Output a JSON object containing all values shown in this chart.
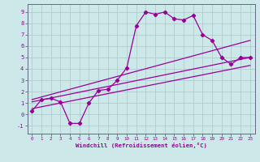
{
  "xlabel": "Windchill (Refroidissement éolien,°C)",
  "background_color": "#cce8e8",
  "grid_color": "#b0cccc",
  "line_color": "#990099",
  "spine_color": "#666688",
  "xlim": [
    -0.5,
    23.5
  ],
  "ylim": [
    -1.7,
    9.7
  ],
  "xticks": [
    0,
    1,
    2,
    3,
    4,
    5,
    6,
    7,
    8,
    9,
    10,
    11,
    12,
    13,
    14,
    15,
    16,
    17,
    18,
    19,
    20,
    21,
    22,
    23
  ],
  "yticks": [
    -1,
    0,
    1,
    2,
    3,
    4,
    5,
    6,
    7,
    8,
    9
  ],
  "series": [
    {
      "x": [
        0,
        1,
        2,
        3,
        4,
        5,
        6,
        7,
        8,
        9,
        10,
        11,
        12,
        13,
        14,
        15,
        16,
        17,
        18,
        19,
        20,
        21,
        22,
        23
      ],
      "y": [
        0.3,
        1.3,
        1.4,
        1.1,
        -0.8,
        -0.8,
        1.0,
        2.1,
        2.2,
        3.0,
        4.1,
        7.8,
        9.0,
        8.8,
        9.0,
        8.4,
        8.3,
        8.7,
        7.0,
        6.5,
        5.0,
        4.4,
        5.0,
        5.0
      ],
      "marker": true
    },
    {
      "x": [
        0,
        23
      ],
      "y": [
        1.1,
        5.0
      ],
      "marker": false
    },
    {
      "x": [
        0,
        23
      ],
      "y": [
        0.5,
        4.3
      ],
      "marker": false
    },
    {
      "x": [
        0,
        23
      ],
      "y": [
        1.3,
        6.5
      ],
      "marker": false
    }
  ]
}
